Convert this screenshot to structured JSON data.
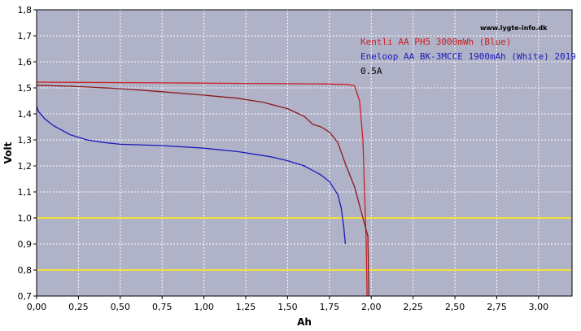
{
  "chart_data": {
    "type": "line",
    "title": "",
    "xlabel": "Ah",
    "ylabel": "Volt",
    "xlim": [
      0,
      3.2
    ],
    "ylim": [
      0.7,
      1.8
    ],
    "grid": true,
    "x_ticks": [
      "0,00",
      "0,25",
      "0,50",
      "0,75",
      "1,00",
      "1,25",
      "1,50",
      "1,75",
      "2,00",
      "2,25",
      "2,50",
      "2,75",
      "3,00"
    ],
    "y_ticks": [
      "0,7",
      "0,8",
      "0,9",
      "1,0",
      "1,1",
      "1,2",
      "1,3",
      "1,4",
      "1,5",
      "1,6",
      "1,7",
      "1,8"
    ],
    "watermark": "www.lygte-info.dk",
    "annotation": "0.5A",
    "reference_lines": [
      1.0,
      0.8
    ],
    "colors": {
      "plot_bg": "#b0b2c8",
      "grid": "#ffffff",
      "reference": "#f2e23a",
      "red_series": "#cc1f1f",
      "dark_red_series": "#8b1a1a",
      "blue_series": "#1a1ab8",
      "annotation": "#000000"
    },
    "series": [
      {
        "name": "Kentli AA PH5 3000mWh (Blue)",
        "color": "#cc1f1f",
        "points": [
          [
            0,
            1.522
          ],
          [
            0.25,
            1.521
          ],
          [
            0.5,
            1.52
          ],
          [
            0.75,
            1.519
          ],
          [
            1.0,
            1.518
          ],
          [
            1.25,
            1.517
          ],
          [
            1.5,
            1.516
          ],
          [
            1.7,
            1.515
          ],
          [
            1.85,
            1.513
          ],
          [
            1.9,
            1.508
          ],
          [
            1.93,
            1.45
          ],
          [
            1.95,
            1.3
          ],
          [
            1.96,
            1.1
          ],
          [
            1.97,
            0.9
          ],
          [
            1.975,
            0.7
          ]
        ]
      },
      {
        "name": "",
        "color": "#8b1a1a",
        "points": [
          [
            0,
            1.51
          ],
          [
            0.25,
            1.505
          ],
          [
            0.5,
            1.497
          ],
          [
            0.75,
            1.485
          ],
          [
            1.0,
            1.472
          ],
          [
            1.2,
            1.46
          ],
          [
            1.35,
            1.445
          ],
          [
            1.5,
            1.42
          ],
          [
            1.6,
            1.39
          ],
          [
            1.65,
            1.36
          ],
          [
            1.7,
            1.35
          ],
          [
            1.75,
            1.33
          ],
          [
            1.8,
            1.29
          ],
          [
            1.85,
            1.2
          ],
          [
            1.9,
            1.12
          ],
          [
            1.95,
            1.0
          ],
          [
            1.98,
            0.93
          ],
          [
            1.985,
            0.7
          ]
        ]
      },
      {
        "name": "Eneloop AA BK-3MCCE 1900mAh (White) 2019",
        "color": "#1a1ab8",
        "points": [
          [
            0,
            1.43
          ],
          [
            0.01,
            1.41
          ],
          [
            0.05,
            1.38
          ],
          [
            0.1,
            1.355
          ],
          [
            0.2,
            1.32
          ],
          [
            0.3,
            1.3
          ],
          [
            0.4,
            1.29
          ],
          [
            0.5,
            1.283
          ],
          [
            0.75,
            1.278
          ],
          [
            1.0,
            1.268
          ],
          [
            1.2,
            1.255
          ],
          [
            1.4,
            1.235
          ],
          [
            1.5,
            1.22
          ],
          [
            1.6,
            1.2
          ],
          [
            1.7,
            1.165
          ],
          [
            1.75,
            1.14
          ],
          [
            1.8,
            1.09
          ],
          [
            1.82,
            1.04
          ],
          [
            1.835,
            0.97
          ],
          [
            1.845,
            0.9
          ]
        ]
      }
    ]
  }
}
